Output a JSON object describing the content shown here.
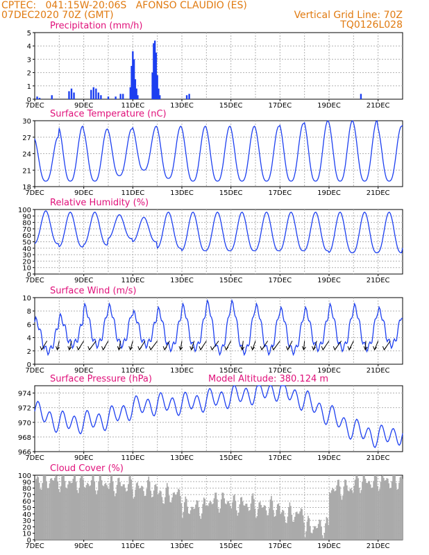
{
  "header": {
    "line1": "CPTEC:   041:15W-20:06S   AFONSO CLAUDIO (ES)",
    "line2_left": "07DEC2020 70Z (GMT)",
    "line2_right": "Vertical Grid Line: 70Z",
    "line3_right": "TQ0126L028"
  },
  "colors": {
    "header": "#e07a10",
    "title": "#e0107a",
    "line": "#1c3ff0",
    "bar": "#1c3ff0",
    "cloud": "#aaaaaa",
    "grid": "#b0b0b0"
  },
  "x_axis": {
    "start": "07DEC",
    "end": "22DEC",
    "tick_labels": [
      "7DEC",
      "9DEC",
      "11DEC",
      "13DEC",
      "15DEC",
      "17DEC",
      "19DEC",
      "21DEC"
    ],
    "tick_days": [
      0,
      2,
      4,
      6,
      8,
      10,
      12,
      14
    ],
    "grid_days": [
      1,
      2,
      3,
      4,
      5,
      6,
      7,
      8,
      9,
      10,
      11,
      12,
      13,
      14
    ]
  },
  "chart_data": [
    {
      "type": "bar",
      "title": "Precipitation (mm/h)",
      "ylim": [
        0,
        5
      ],
      "yticks": [
        0,
        1,
        2,
        3,
        4,
        5
      ],
      "x_unit": "days since 07DEC",
      "x": [
        0.1,
        0.2,
        0.7,
        1.4,
        1.5,
        1.6,
        2.3,
        2.4,
        2.5,
        2.6,
        2.7,
        3.0,
        3.3,
        3.5,
        3.6,
        3.9,
        3.95,
        4.0,
        4.05,
        4.1,
        4.15,
        4.2,
        4.8,
        4.85,
        4.9,
        4.95,
        5.0,
        5.05,
        5.1,
        6.2,
        6.3,
        13.3
      ],
      "values": [
        0.2,
        0.1,
        0.3,
        0.6,
        0.8,
        0.5,
        0.7,
        0.9,
        0.8,
        0.5,
        0.3,
        0.2,
        0.2,
        0.4,
        0.4,
        0.9,
        2.5,
        3.6,
        3.0,
        1.5,
        0.8,
        0.3,
        2.0,
        4.2,
        4.4,
        3.5,
        1.8,
        0.8,
        0.3,
        0.3,
        0.4,
        0.4
      ]
    },
    {
      "type": "line",
      "title": "Surface Temperature (nC)",
      "ylim": [
        18,
        30
      ],
      "yticks": [
        18,
        21,
        24,
        27,
        30
      ],
      "daily_min": [
        19,
        19,
        19,
        20,
        21,
        19.5,
        19,
        19,
        19,
        19,
        19,
        19,
        19,
        19,
        19,
        19
      ],
      "daily_max": [
        27,
        29,
        28.5,
        28.5,
        29,
        29,
        29,
        29,
        29,
        29,
        29.5,
        30,
        30,
        30,
        29,
        29.5
      ]
    },
    {
      "type": "line",
      "title": "Relative Humidity (%)",
      "ylim": [
        0,
        100
      ],
      "yticks": [
        0,
        10,
        20,
        30,
        40,
        50,
        60,
        70,
        80,
        90,
        100
      ],
      "daily_max": [
        98,
        96,
        96,
        92,
        88,
        96,
        96,
        96,
        96,
        96,
        96,
        96,
        96,
        96,
        96,
        96
      ],
      "daily_min": [
        47,
        42,
        45,
        55,
        50,
        40,
        36,
        36,
        36,
        36,
        36,
        36,
        33,
        33,
        33,
        40
      ]
    },
    {
      "type": "line",
      "title": "Surface Wind (m/s)",
      "ylim": [
        0,
        10
      ],
      "yticks": [
        0,
        2,
        4,
        6,
        8,
        10
      ],
      "daily_max": [
        6.5,
        7.0,
        8.5,
        8.5,
        7.5,
        8,
        8.5,
        9,
        9,
        8.5,
        8,
        8,
        8.5,
        8.5,
        8,
        7
      ],
      "daily_min": [
        2,
        3,
        3,
        3,
        3,
        2.5,
        2.5,
        2,
        2,
        2,
        2,
        2.5,
        2.5,
        2.5,
        3,
        4
      ]
    },
    {
      "type": "line",
      "title": "Surface Pressure (hPa)",
      "subtitle": "Model Altitude: 380.124 m",
      "ylim": [
        966,
        975
      ],
      "yticks": [
        966,
        968,
        970,
        972,
        974
      ],
      "daily_mean": [
        971.5,
        970,
        970,
        970.5,
        972,
        972.5,
        972.5,
        973,
        973.5,
        974,
        974.5,
        973,
        971,
        969,
        968,
        968.5
      ]
    },
    {
      "type": "area",
      "title": "Cloud Cover (%)",
      "ylim": [
        0,
        100
      ],
      "yticks": [
        0,
        10,
        20,
        30,
        40,
        50,
        60,
        70,
        80,
        90,
        100
      ],
      "daily_mean": [
        92,
        90,
        88,
        85,
        80,
        70,
        50,
        60,
        55,
        50,
        40,
        20,
        80,
        90,
        92,
        95
      ]
    }
  ]
}
